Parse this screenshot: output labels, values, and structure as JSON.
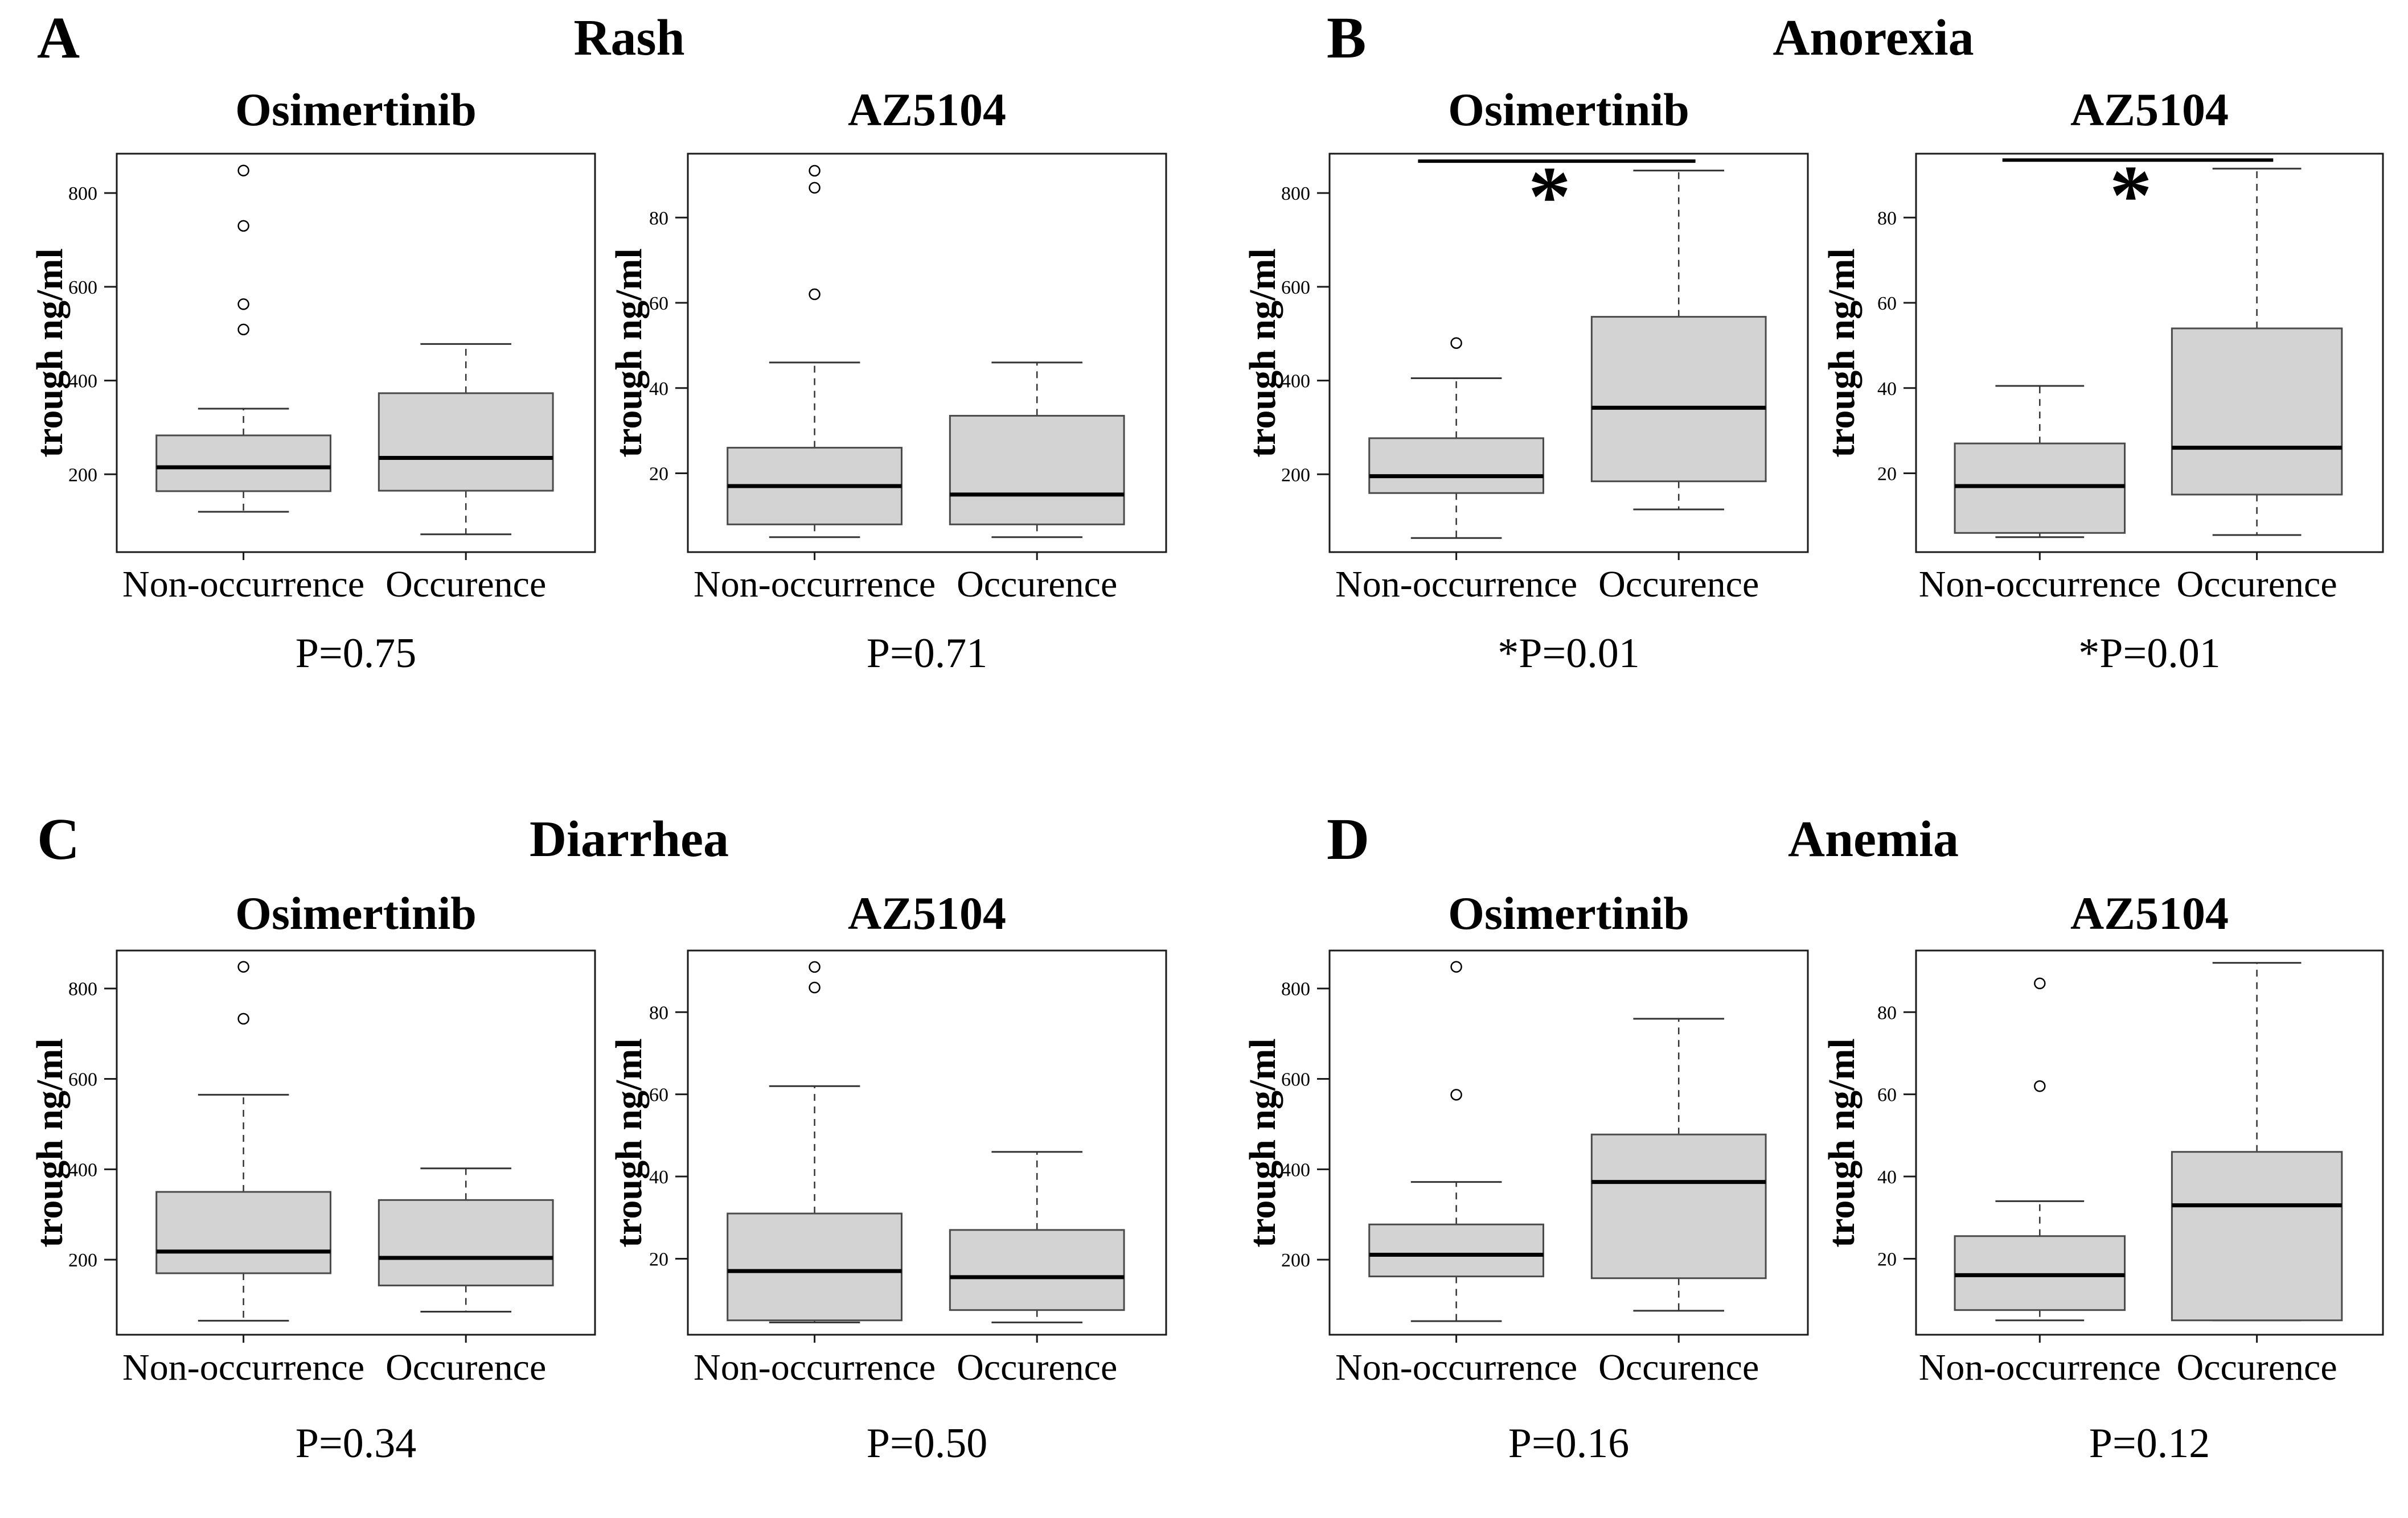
{
  "figure": {
    "y_axis_label": "trough ng/ml",
    "x_categories": [
      "Non-occurrence",
      "Occurence"
    ],
    "significance_marker": "*",
    "colors": {
      "background": "#ffffff",
      "box_fill": "#d3d3d3",
      "box_stroke": "#4a4a4a",
      "frame_stroke": "#1a1a1a",
      "median_stroke": "#000000",
      "whisker_stroke": "#333333"
    }
  },
  "chart_data": [
    {
      "type": "boxplot",
      "letter": "A",
      "title": "Rash",
      "subplots": [
        {
          "drug": "Osimertinib",
          "ylabel": "trough ng/ml",
          "ylim": [
            34,
            884
          ],
          "yticks": [
            200,
            400,
            600,
            800
          ],
          "p_label": "P=0.75",
          "significance_line_y": null,
          "groups": [
            {
              "category": "Non-occurrence",
              "whisker_low": 120,
              "q1": 164,
              "median": 215,
              "q3": 283,
              "whisker_high": 340,
              "outliers": [
                848,
                730,
                563,
                509
              ]
            },
            {
              "category": "Occurence",
              "whisker_low": 72,
              "q1": 165,
              "median": 235,
              "q3": 373,
              "whisker_high": 478,
              "outliers": []
            }
          ]
        },
        {
          "drug": "AZ5104",
          "ylabel": "trough ng/ml",
          "ylim": [
            1.5,
            95
          ],
          "yticks": [
            20,
            40,
            60,
            80
          ],
          "p_label": "P=0.71",
          "significance_line_y": null,
          "groups": [
            {
              "category": "Non-occurrence",
              "whisker_low": 5,
              "q1": 8,
              "median": 17,
              "q3": 26,
              "whisker_high": 46,
              "outliers": [
                91,
                87,
                62
              ]
            },
            {
              "category": "Occurence",
              "whisker_low": 5,
              "q1": 8,
              "median": 15,
              "q3": 33.5,
              "whisker_high": 46,
              "outliers": []
            }
          ]
        }
      ]
    },
    {
      "type": "boxplot",
      "letter": "B",
      "title": "Anorexia",
      "subplots": [
        {
          "drug": "Osimertinib",
          "ylabel": "trough ng/ml",
          "ylim": [
            34,
            884
          ],
          "yticks": [
            200,
            400,
            600,
            800
          ],
          "p_label": "*P=0.01",
          "significance_line_y": 868,
          "groups": [
            {
              "category": "Non-occurrence",
              "whisker_low": 64,
              "q1": 160,
              "median": 196,
              "q3": 277,
              "whisker_high": 405,
              "outliers": [
                480
              ]
            },
            {
              "category": "Occurence",
              "whisker_low": 125,
              "q1": 185,
              "median": 342,
              "q3": 536,
              "whisker_high": 848,
              "outliers": []
            }
          ]
        },
        {
          "drug": "AZ5104",
          "ylabel": "trough ng/ml",
          "ylim": [
            1.5,
            95
          ],
          "yticks": [
            20,
            40,
            60,
            80
          ],
          "p_label": "*P=0.01",
          "significance_line_y": 93.5,
          "groups": [
            {
              "category": "Non-occurrence",
              "whisker_low": 5,
              "q1": 6,
              "median": 17,
              "q3": 27,
              "whisker_high": 40.5,
              "outliers": []
            },
            {
              "category": "Occurence",
              "whisker_low": 5.5,
              "q1": 15,
              "median": 26,
              "q3": 54,
              "whisker_high": 91.5,
              "outliers": []
            }
          ]
        }
      ]
    },
    {
      "type": "boxplot",
      "letter": "C",
      "title": "Diarrhea",
      "subplots": [
        {
          "drug": "Osimertinib",
          "ylabel": "trough ng/ml",
          "ylim": [
            34,
            884
          ],
          "yticks": [
            200,
            400,
            600,
            800
          ],
          "p_label": "P=0.34",
          "significance_line_y": null,
          "groups": [
            {
              "category": "Non-occurrence",
              "whisker_low": 65,
              "q1": 170,
              "median": 218,
              "q3": 350,
              "whisker_high": 565,
              "outliers": [
                848,
                733
              ]
            },
            {
              "category": "Occurence",
              "whisker_low": 85,
              "q1": 143,
              "median": 204,
              "q3": 332,
              "whisker_high": 402,
              "outliers": []
            }
          ]
        },
        {
          "drug": "AZ5104",
          "ylabel": "trough ng/ml",
          "ylim": [
            1.5,
            95
          ],
          "yticks": [
            20,
            40,
            60,
            80
          ],
          "p_label": "P=0.50",
          "significance_line_y": null,
          "groups": [
            {
              "category": "Non-occurrence",
              "whisker_low": 4.5,
              "q1": 5,
              "median": 17,
              "q3": 31,
              "whisker_high": 62,
              "outliers": [
                91,
                86
              ]
            },
            {
              "category": "Occurence",
              "whisker_low": 4.5,
              "q1": 7.5,
              "median": 15.5,
              "q3": 27,
              "whisker_high": 46,
              "outliers": []
            }
          ]
        }
      ]
    },
    {
      "type": "boxplot",
      "letter": "D",
      "title": "Anemia",
      "subplots": [
        {
          "drug": "Osimertinib",
          "ylabel": "trough ng/ml",
          "ylim": [
            34,
            884
          ],
          "yticks": [
            200,
            400,
            600,
            800
          ],
          "p_label": "P=0.16",
          "significance_line_y": null,
          "groups": [
            {
              "category": "Non-occurrence",
              "whisker_low": 64,
              "q1": 163,
              "median": 211,
              "q3": 278,
              "whisker_high": 372,
              "outliers": [
                848,
                565
              ]
            },
            {
              "category": "Occurence",
              "whisker_low": 87,
              "q1": 159,
              "median": 372,
              "q3": 477,
              "whisker_high": 733,
              "outliers": []
            }
          ]
        },
        {
          "drug": "AZ5104",
          "ylabel": "trough ng/ml",
          "ylim": [
            1.5,
            95
          ],
          "yticks": [
            20,
            40,
            60,
            80
          ],
          "p_label": "P=0.12",
          "significance_line_y": null,
          "groups": [
            {
              "category": "Non-occurrence",
              "whisker_low": 5,
              "q1": 7.5,
              "median": 16,
              "q3": 25.5,
              "whisker_high": 34,
              "outliers": [
                87,
                62
              ]
            },
            {
              "category": "Occurence",
              "whisker_low": 5,
              "q1": 5,
              "median": 33,
              "q3": 46,
              "whisker_high": 92,
              "outliers": []
            }
          ]
        }
      ]
    }
  ]
}
